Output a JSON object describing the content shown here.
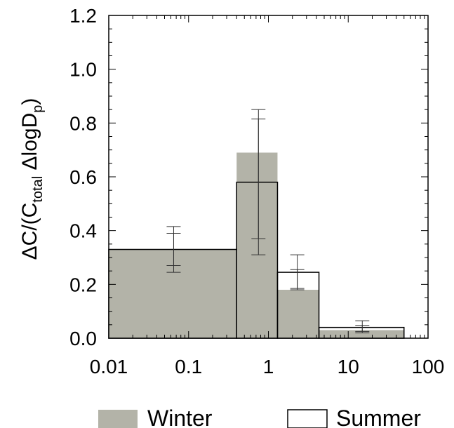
{
  "chart_data": {
    "type": "bar",
    "ylabel": {
      "main1": "ΔC/(C",
      "sub1": "total",
      "main2": " ΔlogD",
      "sub2": "p",
      "main3": ")"
    },
    "xscale": "log",
    "xlim": [
      0.01,
      100
    ],
    "ylim": [
      0,
      1.2
    ],
    "x_ticks": [
      "0.01",
      "0.1",
      "1",
      "10",
      "100"
    ],
    "y_ticks": [
      "0.0",
      "0.2",
      "0.4",
      "0.6",
      "0.8",
      "1.0",
      "1.2"
    ],
    "bins": [
      {
        "left": 0.01,
        "right": 0.4
      },
      {
        "left": 0.4,
        "right": 1.3
      },
      {
        "left": 1.3,
        "right": 4.3
      },
      {
        "left": 4.3,
        "right": 50
      }
    ],
    "series": [
      {
        "name": "Winter",
        "fill": "#b3b3a8",
        "values": [
          0.33,
          0.69,
          0.18,
          0.03
        ],
        "error_x": [
          0.065,
          0.75,
          2.3,
          15
        ],
        "error_low": [
          0.245,
          0.31,
          0.18,
          0.02
        ],
        "error_high": [
          0.415,
          0.85,
          0.255,
          0.048
        ]
      },
      {
        "name": "Summer",
        "fill": "none",
        "values": [
          0.33,
          0.58,
          0.245,
          0.04
        ],
        "error_x": [
          0.065,
          0.75,
          2.3,
          15
        ],
        "error_low": [
          0.27,
          0.37,
          0.185,
          0.025
        ],
        "error_high": [
          0.39,
          0.815,
          0.31,
          0.065
        ]
      }
    ],
    "legend_position": "bottom"
  }
}
